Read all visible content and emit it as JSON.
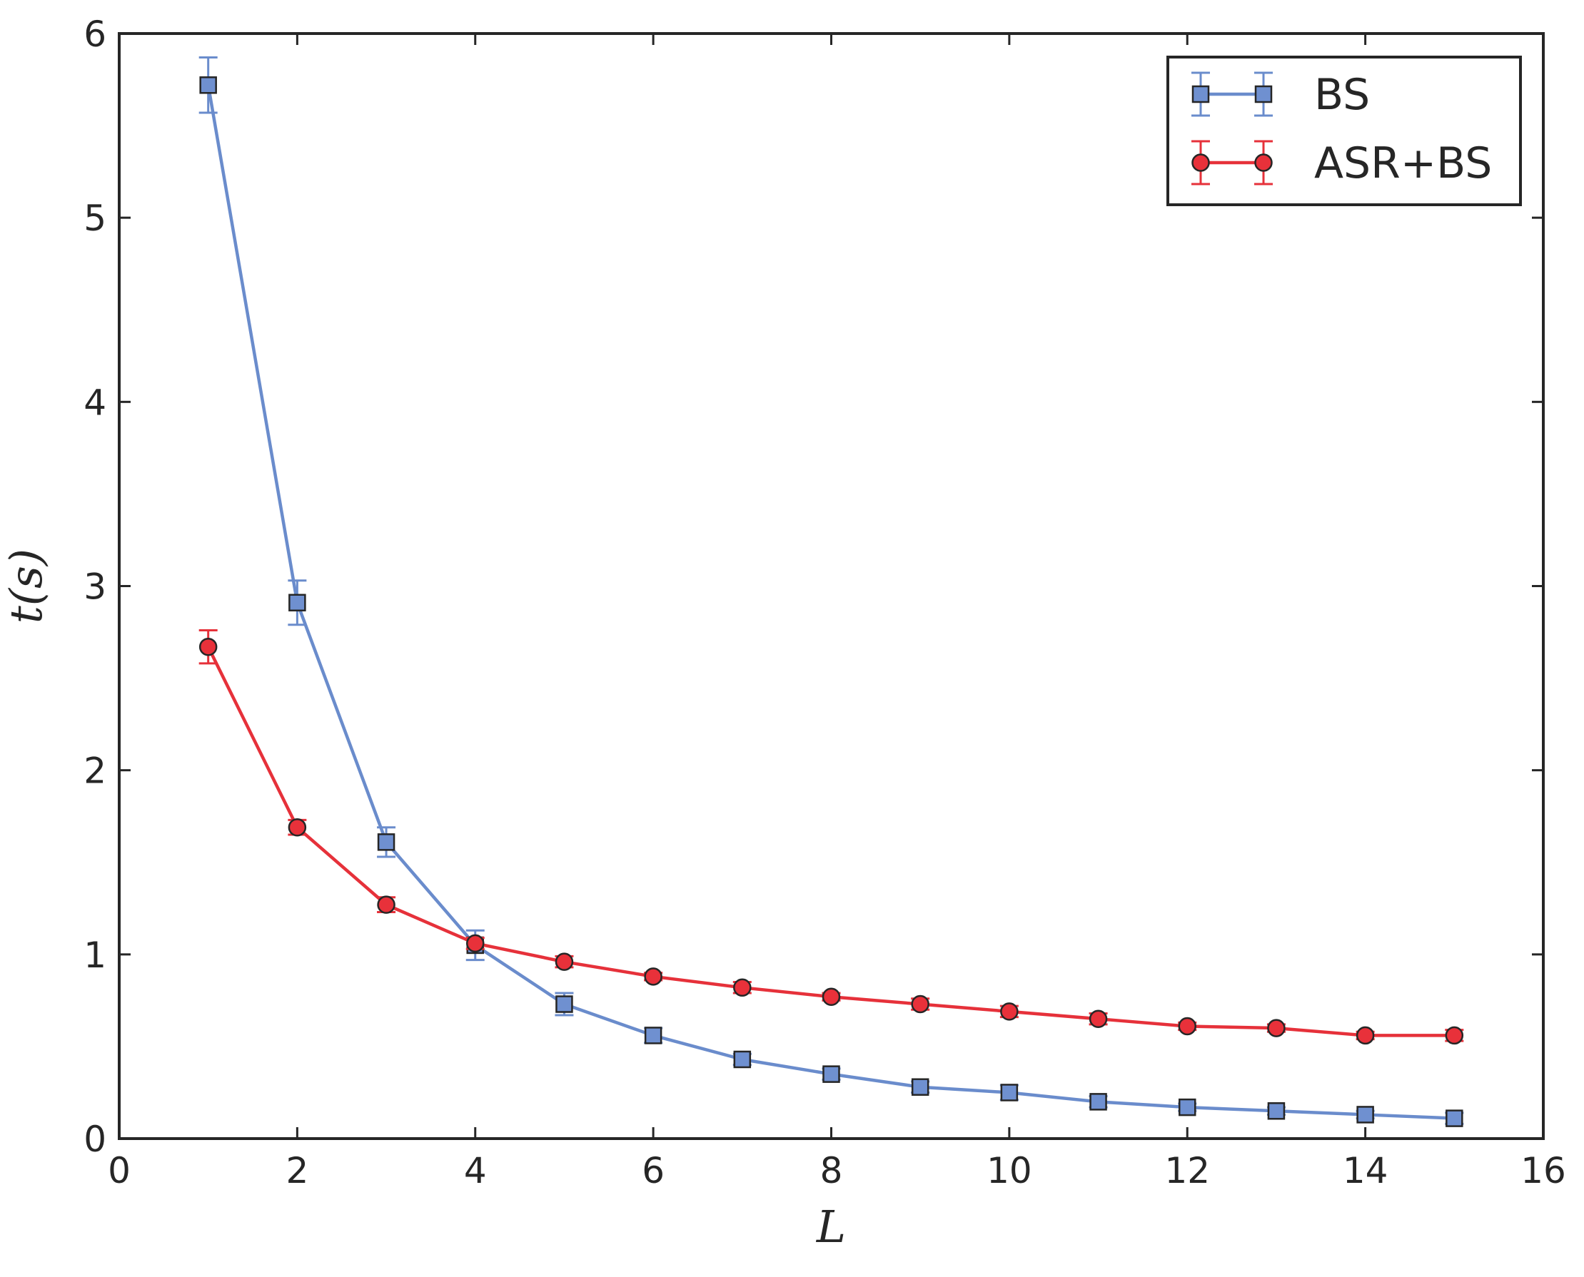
{
  "chart_data": {
    "type": "line",
    "xlabel": "L",
    "ylabel": "t(s)",
    "xlim": [
      0,
      16
    ],
    "ylim": [
      0,
      6
    ],
    "xticks": [
      "0",
      "2",
      "4",
      "6",
      "8",
      "10",
      "12",
      "14",
      "16"
    ],
    "yticks": [
      "0",
      "1",
      "2",
      "3",
      "4",
      "5",
      "6"
    ],
    "grid": false,
    "legend_position": "top-right",
    "x": [
      1,
      2,
      3,
      4,
      5,
      6,
      7,
      8,
      9,
      10,
      11,
      12,
      13,
      14,
      15
    ],
    "series": [
      {
        "name": "BS",
        "marker": "square",
        "color": "#6a8ccc",
        "marker_color": "#6f90d0",
        "values": [
          5.72,
          2.91,
          1.61,
          1.05,
          0.73,
          0.56,
          0.43,
          0.35,
          0.28,
          0.25,
          0.2,
          0.17,
          0.15,
          0.13,
          0.11
        ],
        "errors": [
          0.15,
          0.12,
          0.08,
          0.08,
          0.06,
          0.04,
          0.03,
          0.03,
          0.03,
          0.04,
          0.03,
          0.02,
          0.02,
          0.02,
          0.03
        ]
      },
      {
        "name": "ASR+BS",
        "marker": "circle",
        "color": "#e6313a",
        "marker_color": "#e8313a",
        "values": [
          2.67,
          1.69,
          1.27,
          1.06,
          0.96,
          0.88,
          0.82,
          0.77,
          0.73,
          0.69,
          0.65,
          0.61,
          0.6,
          0.56,
          0.56
        ],
        "errors": [
          0.09,
          0.04,
          0.04,
          0.03,
          0.03,
          0.02,
          0.03,
          0.02,
          0.03,
          0.03,
          0.03,
          0.02,
          0.02,
          0.02,
          0.03
        ]
      }
    ]
  }
}
